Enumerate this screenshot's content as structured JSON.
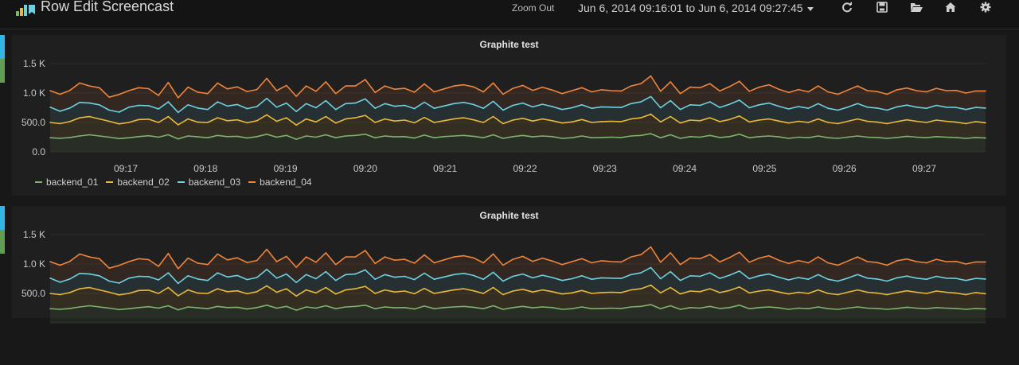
{
  "header": {
    "title": "Row Edit Screencast",
    "zoom_out": "Zoom Out",
    "time_range": "Jun 6, 2014 09:16:01 to Jun 6, 2014 09:27:45"
  },
  "toolbar_icons": [
    "refresh-icon",
    "save-icon",
    "folder-open-icon",
    "home-icon",
    "gear-icon"
  ],
  "colors": {
    "backend_01": "#7eb26d",
    "backend_02": "#eab839",
    "backend_03": "#6ed0e0",
    "backend_04": "#ef843c",
    "row_ctrl_top": "#33b5e5",
    "row_ctrl_bottom": "#629e51"
  },
  "panels": [
    {
      "title": "Graphite test"
    },
    {
      "title": "Graphite test"
    }
  ],
  "chart_data": [
    {
      "type": "area",
      "title": "Graphite test",
      "y_ticks": [
        "0.0",
        "500.0",
        "1.0 K",
        "1.5 K"
      ],
      "ylim": [
        0,
        1500
      ],
      "x_ticks": [
        "09:17",
        "09:18",
        "09:19",
        "09:20",
        "09:21",
        "09:22",
        "09:23",
        "09:24",
        "09:25",
        "09:26",
        "09:27"
      ],
      "stacked": true,
      "legend": "bottom",
      "series": [
        {
          "name": "backend_01",
          "values": [
            240,
            230,
            245,
            270,
            290,
            270,
            250,
            225,
            240,
            260,
            275,
            250,
            290,
            220,
            270,
            255,
            240,
            280,
            260,
            265,
            235,
            260,
            300,
            250,
            280,
            215,
            270,
            250,
            290,
            240,
            270,
            280,
            300,
            240,
            270,
            255,
            260,
            235,
            285,
            240,
            260,
            270,
            280,
            265,
            240,
            290,
            230,
            260,
            280,
            255,
            270,
            260,
            230,
            240,
            270,
            240,
            245,
            250,
            245,
            270,
            280,
            310,
            240,
            290,
            230,
            260,
            250,
            280,
            245,
            260,
            300,
            240,
            260,
            270,
            255,
            230,
            250,
            240,
            270,
            240,
            230,
            250,
            270,
            250,
            245,
            230,
            245,
            265,
            250,
            240,
            260,
            250,
            245,
            230,
            245,
            235
          ]
        },
        {
          "name": "backend_02",
          "values": [
            260,
            250,
            270,
            310,
            310,
            290,
            270,
            250,
            260,
            290,
            280,
            250,
            310,
            240,
            290,
            250,
            260,
            300,
            270,
            280,
            260,
            270,
            330,
            270,
            300,
            240,
            290,
            260,
            310,
            250,
            290,
            300,
            320,
            260,
            290,
            270,
            280,
            260,
            300,
            260,
            270,
            290,
            300,
            280,
            260,
            310,
            250,
            280,
            290,
            270,
            290,
            270,
            260,
            270,
            280,
            260,
            270,
            270,
            270,
            290,
            300,
            330,
            270,
            310,
            260,
            280,
            280,
            300,
            270,
            290,
            310,
            270,
            280,
            290,
            270,
            260,
            270,
            260,
            290,
            260,
            250,
            270,
            290,
            270,
            260,
            250,
            270,
            280,
            270,
            260,
            280,
            270,
            260,
            250,
            270,
            260
          ]
        },
        {
          "name": "backend_03",
          "values": [
            260,
            210,
            230,
            260,
            230,
            240,
            190,
            200,
            260,
            240,
            230,
            230,
            250,
            210,
            240,
            240,
            220,
            270,
            250,
            260,
            240,
            240,
            280,
            240,
            250,
            230,
            260,
            240,
            270,
            230,
            260,
            250,
            280,
            240,
            260,
            250,
            250,
            240,
            260,
            240,
            250,
            260,
            260,
            260,
            240,
            260,
            230,
            250,
            260,
            240,
            250,
            240,
            230,
            240,
            250,
            240,
            250,
            240,
            240,
            260,
            270,
            300,
            240,
            270,
            230,
            260,
            260,
            270,
            240,
            260,
            270,
            240,
            260,
            270,
            250,
            240,
            250,
            240,
            260,
            240,
            230,
            240,
            260,
            240,
            240,
            230,
            250,
            250,
            240,
            240,
            250,
            240,
            250,
            240,
            240,
            250
          ]
        },
        {
          "name": "backend_04",
          "values": [
            280,
            290,
            300,
            330,
            290,
            290,
            220,
            300,
            280,
            300,
            290,
            230,
            330,
            250,
            300,
            270,
            270,
            320,
            290,
            300,
            290,
            290,
            340,
            280,
            300,
            260,
            300,
            280,
            320,
            270,
            300,
            290,
            330,
            270,
            300,
            290,
            290,
            280,
            310,
            280,
            290,
            300,
            300,
            300,
            280,
            310,
            270,
            290,
            300,
            280,
            290,
            280,
            270,
            290,
            290,
            280,
            290,
            280,
            280,
            300,
            310,
            350,
            280,
            320,
            270,
            300,
            300,
            310,
            280,
            300,
            320,
            280,
            300,
            310,
            290,
            280,
            290,
            280,
            300,
            280,
            270,
            290,
            300,
            280,
            280,
            270,
            290,
            290,
            280,
            280,
            290,
            280,
            290,
            280,
            280,
            290
          ]
        }
      ]
    },
    {
      "type": "area",
      "title": "Graphite test",
      "y_ticks": [
        "500.0",
        "1.0 K",
        "1.5 K"
      ],
      "ylim": [
        0,
        1500
      ],
      "stacked": true,
      "series": [
        {
          "name": "backend_01",
          "values": [
            240,
            230,
            245,
            270,
            290,
            270,
            250,
            225,
            240,
            260,
            275,
            250,
            290,
            220,
            270,
            255,
            240,
            280,
            260,
            265,
            235,
            260,
            300,
            250,
            280,
            215,
            270,
            250,
            290,
            240,
            270,
            280,
            300,
            240,
            270,
            255,
            260,
            235,
            285,
            240,
            260,
            270,
            280,
            265,
            240,
            290,
            230,
            260,
            280,
            255,
            270,
            260,
            230,
            240,
            270,
            240,
            245,
            250,
            245,
            270,
            280,
            310,
            240,
            290,
            230,
            260,
            250,
            280,
            245,
            260,
            300,
            240,
            260,
            270,
            255,
            230,
            250,
            240,
            270,
            240,
            230,
            250,
            270,
            250,
            245,
            230,
            245,
            265,
            250,
            240,
            260,
            250,
            245,
            230,
            245,
            235
          ]
        },
        {
          "name": "backend_02",
          "values": [
            260,
            250,
            270,
            310,
            310,
            290,
            270,
            250,
            260,
            290,
            280,
            250,
            310,
            240,
            290,
            250,
            260,
            300,
            270,
            280,
            260,
            270,
            330,
            270,
            300,
            240,
            290,
            260,
            310,
            250,
            290,
            300,
            320,
            260,
            290,
            270,
            280,
            260,
            300,
            260,
            270,
            290,
            300,
            280,
            260,
            310,
            250,
            280,
            290,
            270,
            290,
            270,
            260,
            270,
            280,
            260,
            270,
            270,
            270,
            290,
            300,
            330,
            270,
            310,
            260,
            280,
            280,
            300,
            270,
            290,
            310,
            270,
            280,
            290,
            270,
            260,
            270,
            260,
            290,
            260,
            250,
            270,
            290,
            270,
            260,
            250,
            270,
            280,
            270,
            260,
            280,
            270,
            260,
            250,
            270,
            260
          ]
        },
        {
          "name": "backend_03",
          "values": [
            260,
            210,
            230,
            260,
            230,
            240,
            190,
            200,
            260,
            240,
            230,
            230,
            250,
            210,
            240,
            240,
            220,
            270,
            250,
            260,
            240,
            240,
            280,
            240,
            250,
            230,
            260,
            240,
            270,
            230,
            260,
            250,
            280,
            240,
            260,
            250,
            250,
            240,
            260,
            240,
            250,
            260,
            260,
            260,
            240,
            260,
            230,
            250,
            260,
            240,
            250,
            240,
            230,
            240,
            250,
            240,
            250,
            240,
            240,
            260,
            270,
            300,
            240,
            270,
            230,
            260,
            260,
            270,
            240,
            260,
            270,
            240,
            260,
            270,
            250,
            240,
            250,
            240,
            260,
            240,
            230,
            240,
            260,
            240,
            240,
            230,
            250,
            250,
            240,
            240,
            250,
            240,
            250,
            240,
            240,
            250
          ]
        },
        {
          "name": "backend_04",
          "values": [
            280,
            290,
            300,
            330,
            290,
            290,
            220,
            300,
            280,
            300,
            290,
            230,
            330,
            250,
            300,
            270,
            270,
            320,
            290,
            300,
            290,
            290,
            340,
            280,
            300,
            260,
            300,
            280,
            320,
            270,
            300,
            290,
            330,
            270,
            300,
            290,
            290,
            280,
            310,
            280,
            290,
            300,
            300,
            300,
            280,
            310,
            270,
            290,
            300,
            280,
            290,
            280,
            270,
            290,
            290,
            280,
            290,
            280,
            280,
            300,
            310,
            350,
            280,
            320,
            270,
            300,
            300,
            310,
            280,
            300,
            320,
            280,
            300,
            310,
            290,
            280,
            290,
            280,
            300,
            280,
            270,
            290,
            300,
            280,
            280,
            270,
            290,
            290,
            280,
            280,
            290,
            280,
            290,
            280,
            280,
            290
          ]
        }
      ]
    }
  ]
}
